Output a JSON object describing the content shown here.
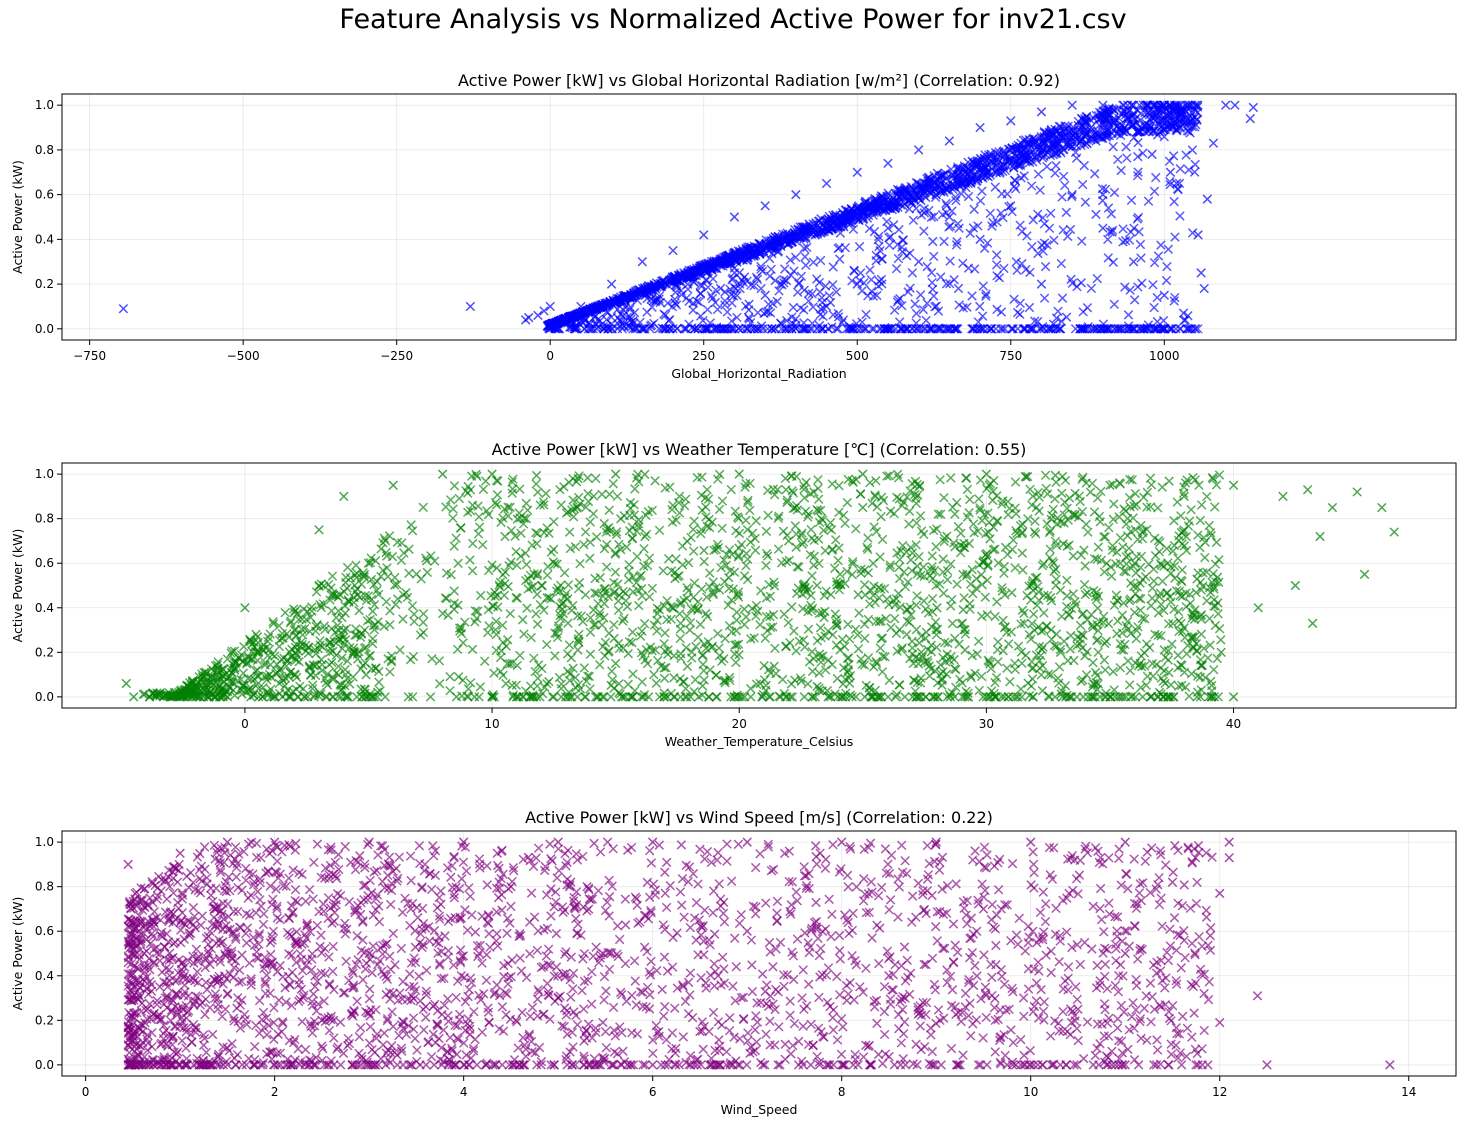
{
  "figure": {
    "suptitle": "Feature Analysis vs Normalized Active Power for inv21.csv"
  },
  "chart_data": [
    {
      "type": "scatter",
      "title": "Active Power [kW] vs Global Horizontal Radiation [w/m²] (Correlation: 0.92)",
      "xlabel": "Global_Horizontal_Radiation",
      "ylabel": "Active Power (kW)",
      "xlim": [
        -795,
        1475
      ],
      "ylim": [
        -0.05,
        1.05
      ],
      "xticks": [
        -750,
        -500,
        -250,
        0,
        250,
        500,
        750,
        1000
      ],
      "yticks": [
        0.0,
        0.2,
        0.4,
        0.6,
        0.8,
        1.0
      ],
      "xtick_labels": [
        "−750",
        "−500",
        "−250",
        "0",
        "250",
        "500",
        "750",
        "1000"
      ],
      "ytick_labels": [
        "0.0",
        "0.2",
        "0.4",
        "0.6",
        "0.8",
        "1.0"
      ],
      "color": "#0000ff",
      "marker": "x",
      "grid": true,
      "points": [
        [
          -695,
          0.09
        ],
        [
          -130,
          0.1
        ],
        [
          -40,
          0.04
        ],
        [
          -35,
          0.05
        ],
        [
          -20,
          0.06
        ],
        [
          -10,
          0.08
        ],
        [
          0,
          0.0
        ],
        [
          0,
          0.1
        ],
        [
          50,
          0.1
        ],
        [
          100,
          0.2
        ],
        [
          150,
          0.3
        ],
        [
          200,
          0.35
        ],
        [
          250,
          0.42
        ],
        [
          300,
          0.5
        ],
        [
          350,
          0.55
        ],
        [
          400,
          0.6
        ],
        [
          450,
          0.65
        ],
        [
          500,
          0.7
        ],
        [
          550,
          0.74
        ],
        [
          600,
          0.8
        ],
        [
          650,
          0.84
        ],
        [
          700,
          0.9
        ],
        [
          750,
          0.93
        ],
        [
          800,
          0.97
        ],
        [
          850,
          1.0
        ],
        [
          900,
          1.0
        ],
        [
          950,
          1.0
        ],
        [
          1000,
          1.0
        ],
        [
          1050,
          1.0
        ],
        [
          1100,
          1.0
        ],
        [
          1115,
          1.0
        ],
        [
          1140,
          0.94
        ],
        [
          1145,
          0.99
        ],
        [
          1080,
          0.83
        ],
        [
          1070,
          0.58
        ],
        [
          1055,
          0.42
        ],
        [
          1060,
          0.25
        ],
        [
          1065,
          0.18
        ],
        [
          1040,
          0.0
        ],
        [
          1000,
          0.0
        ],
        [
          900,
          0.0
        ],
        [
          800,
          0.0
        ],
        [
          700,
          0.0
        ],
        [
          600,
          0.0
        ],
        [
          500,
          0.0
        ],
        [
          400,
          0.0
        ],
        [
          300,
          0.0
        ],
        [
          200,
          0.0
        ],
        [
          100,
          0.0
        ],
        [
          450,
          0.1
        ],
        [
          600,
          0.3
        ],
        [
          700,
          0.4
        ],
        [
          800,
          0.2
        ],
        [
          900,
          0.45
        ],
        [
          950,
          0.3
        ],
        [
          1000,
          0.15
        ],
        [
          850,
          0.6
        ],
        [
          900,
          0.6
        ],
        [
          750,
          0.55
        ],
        [
          650,
          0.5
        ],
        [
          550,
          0.45
        ],
        [
          500,
          0.2
        ],
        [
          350,
          0.15
        ],
        [
          300,
          0.25
        ],
        [
          1010,
          0.7
        ],
        [
          1020,
          0.65
        ],
        [
          980,
          0.78
        ]
      ]
    },
    {
      "type": "scatter",
      "title": "Active Power [kW] vs Weather Temperature [℃] (Correlation: 0.55)",
      "xlabel": "Weather_Temperature_Celsius",
      "ylabel": "Active Power (kW)",
      "xlim": [
        -7.4,
        49
      ],
      "ylim": [
        -0.05,
        1.05
      ],
      "xticks": [
        0,
        10,
        20,
        30,
        40
      ],
      "yticks": [
        0.0,
        0.2,
        0.4,
        0.6,
        0.8,
        1.0
      ],
      "xtick_labels": [
        "0",
        "10",
        "20",
        "30",
        "40"
      ],
      "ytick_labels": [
        "0.0",
        "0.2",
        "0.4",
        "0.6",
        "0.8",
        "1.0"
      ],
      "color": "#008000",
      "marker": "x",
      "grid": true,
      "points": [
        [
          -4.8,
          0.06
        ],
        [
          -4.5,
          0.0
        ],
        [
          -3,
          0.0
        ],
        [
          -1,
          0.02
        ],
        [
          0,
          0.4
        ],
        [
          0.5,
          0.2
        ],
        [
          1,
          0.1
        ],
        [
          2,
          0.3
        ],
        [
          3,
          0.75
        ],
        [
          4,
          0.9
        ],
        [
          5,
          0.6
        ],
        [
          6,
          0.95
        ],
        [
          8,
          1.0
        ],
        [
          10,
          1.0
        ],
        [
          15,
          1.0
        ],
        [
          20,
          1.0
        ],
        [
          25,
          1.0
        ],
        [
          30,
          1.0
        ],
        [
          35,
          0.95
        ],
        [
          38,
          0.9
        ],
        [
          40,
          0.95
        ],
        [
          42,
          0.9
        ],
        [
          43,
          0.93
        ],
        [
          44,
          0.85
        ],
        [
          45,
          0.92
        ],
        [
          46,
          0.85
        ],
        [
          46.5,
          0.74
        ],
        [
          45.3,
          0.55
        ],
        [
          43.5,
          0.72
        ],
        [
          43.2,
          0.33
        ],
        [
          41,
          0.4
        ],
        [
          42.5,
          0.5
        ],
        [
          39.5,
          0.2
        ],
        [
          39,
          0.0
        ],
        [
          40,
          0.0
        ],
        [
          35,
          0.0
        ],
        [
          30,
          0.0
        ],
        [
          20,
          0.0
        ],
        [
          10,
          0.0
        ],
        [
          5,
          0.0
        ],
        [
          12,
          0.5
        ],
        [
          18,
          0.3
        ],
        [
          22,
          0.7
        ],
        [
          28,
          0.4
        ],
        [
          33,
          0.2
        ],
        [
          36,
          0.6
        ],
        [
          37,
          0.45
        ],
        [
          15,
          0.15
        ],
        [
          25,
          0.85
        ]
      ]
    },
    {
      "type": "scatter",
      "title": "Active Power [kW] vs Wind Speed [m/s] (Correlation: 0.22)",
      "xlabel": "Wind_Speed",
      "ylabel": "Active Power (kW)",
      "xlim": [
        -0.25,
        14.5
      ],
      "ylim": [
        -0.05,
        1.05
      ],
      "xticks": [
        0,
        2,
        4,
        6,
        8,
        10,
        12,
        14
      ],
      "yticks": [
        0.0,
        0.2,
        0.4,
        0.6,
        0.8,
        1.0
      ],
      "xtick_labels": [
        "0",
        "2",
        "4",
        "6",
        "8",
        "10",
        "12",
        "14"
      ],
      "ytick_labels": [
        "0.0",
        "0.2",
        "0.4",
        "0.6",
        "0.8",
        "1.0"
      ],
      "color": "#800080",
      "marker": "x",
      "grid": true,
      "points": [
        [
          0.45,
          0.9
        ],
        [
          0.45,
          0.0
        ],
        [
          1,
          0.95
        ],
        [
          1.5,
          1.0
        ],
        [
          2,
          1.0
        ],
        [
          3,
          1.0
        ],
        [
          4,
          1.0
        ],
        [
          5,
          1.0
        ],
        [
          6,
          1.0
        ],
        [
          7,
          1.0
        ],
        [
          8,
          1.0
        ],
        [
          9,
          1.0
        ],
        [
          10,
          1.0
        ],
        [
          11,
          1.0
        ],
        [
          12.1,
          1.0
        ],
        [
          12.1,
          0.93
        ],
        [
          11.5,
          0.82
        ],
        [
          12.0,
          0.77
        ],
        [
          11.9,
          0.58
        ],
        [
          11.7,
          0.36
        ],
        [
          12.4,
          0.31
        ],
        [
          12.0,
          0.19
        ],
        [
          13.8,
          0.0
        ],
        [
          12.5,
          0.0
        ],
        [
          11,
          0.0
        ],
        [
          10,
          0.0
        ],
        [
          8,
          0.0
        ],
        [
          6,
          0.0
        ],
        [
          4,
          0.0
        ],
        [
          2,
          0.0
        ],
        [
          3,
          0.5
        ],
        [
          5,
          0.3
        ],
        [
          7,
          0.6
        ],
        [
          8.5,
          0.4
        ],
        [
          9.5,
          0.7
        ],
        [
          10.5,
          0.25
        ],
        [
          11,
          0.5
        ],
        [
          6.5,
          0.15
        ],
        [
          4.5,
          0.8
        ],
        [
          2.5,
          0.2
        ]
      ]
    }
  ]
}
